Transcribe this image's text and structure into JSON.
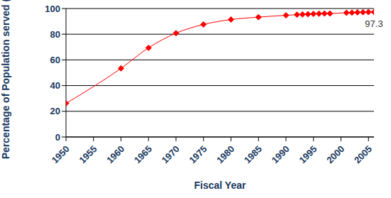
{
  "chart_data": {
    "type": "line",
    "x_label": "Fiscal Year",
    "y_label": "Percentage of Population served (%)",
    "x": [
      1950,
      1960,
      1965,
      1970,
      1975,
      1980,
      1985,
      1990,
      1992,
      1993,
      1994,
      1995,
      1996,
      1997,
      1998,
      2001,
      2002,
      2003,
      2004,
      2005,
      2006
    ],
    "values": [
      26.2,
      53.4,
      69.4,
      80.8,
      87.6,
      91.4,
      93.3,
      94.7,
      95.2,
      95.4,
      95.6,
      95.8,
      96.0,
      96.1,
      96.1,
      96.7,
      96.8,
      97.0,
      97.1,
      97.2,
      97.3
    ],
    "color": "#ff0000",
    "marker": "diamond",
    "line_style": "solid",
    "xlim": [
      1950,
      2006
    ],
    "xticks": [
      1950,
      1955,
      1960,
      1965,
      1970,
      1975,
      1980,
      1985,
      1990,
      1995,
      2000,
      2005
    ],
    "ylim": [
      0,
      100
    ],
    "yticks": [
      0,
      20,
      40,
      60,
      80,
      100
    ],
    "grid": true,
    "annotation": "97.3"
  }
}
